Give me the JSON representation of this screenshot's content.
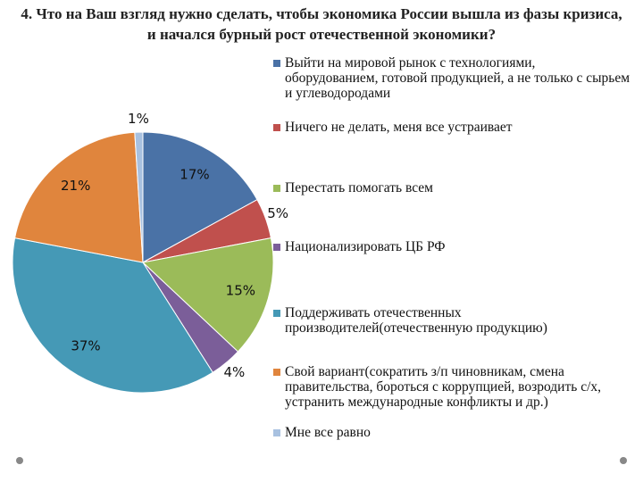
{
  "chart_data": {
    "type": "pie",
    "title": "4. Что на Ваш взгляд нужно сделать, чтобы экономика России вышла из фазы кризиса, и начался бурный рост отечественной экономики?",
    "categories": [
      "Выйти на мировой рынок с технологиями, оборудованием, готовой продукцией, а не только с сырьем и углеводородами",
      "Ничего не делать, меня все устраивает",
      "Перестать помогать всем",
      "Национализировать ЦБ РФ",
      "Поддерживать отечественных производителей(отечественную продукцию)",
      "Свой вариант(сократить з/п чиновникам, смена правительства, бороться с коррупцией, возродить с/х, устранить международные конфликты и др.)",
      "Мне все равно"
    ],
    "values": [
      17,
      5,
      15,
      4,
      37,
      21,
      1
    ],
    "value_labels": [
      "17%",
      "5%",
      "15%",
      "4%",
      "37%",
      "21%",
      "1%"
    ],
    "colors": [
      "#4a72a6",
      "#c0504d",
      "#9bbb59",
      "#7b5e99",
      "#4599b6",
      "#e0853d",
      "#a8c1e0"
    ],
    "legend": "right"
  }
}
